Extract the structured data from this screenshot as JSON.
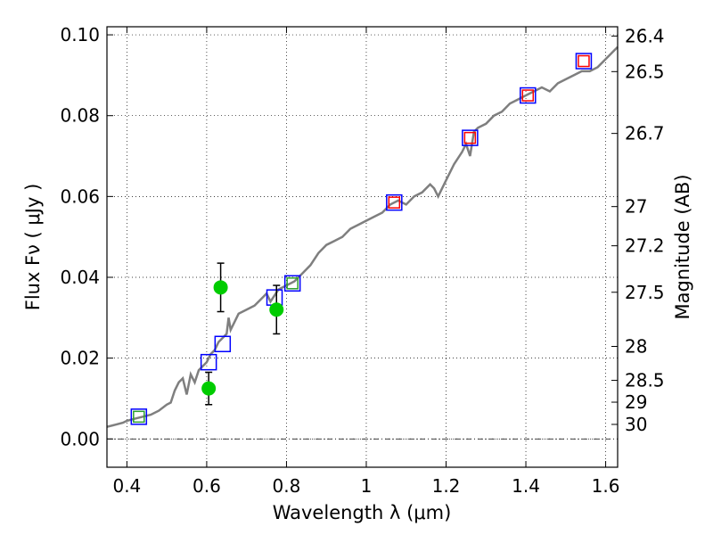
{
  "chart_data": {
    "type": "scatter",
    "xlabel": "Wavelength  λ (μm)",
    "ylabel": "Flux  Fν  ( μJy )",
    "ylabel_right": "Magnitude (AB)",
    "xlim": [
      0.35,
      1.63
    ],
    "ylim": [
      -0.007,
      0.102
    ],
    "x_ticks": [
      0.4,
      0.6,
      0.8,
      1.0,
      1.2,
      1.4,
      1.6
    ],
    "x_tick_labels": [
      "0.4",
      "0.6",
      "0.8",
      "1",
      "1.2",
      "1.4",
      "1.6"
    ],
    "y_ticks": [
      0.0,
      0.02,
      0.04,
      0.06,
      0.08,
      0.1
    ],
    "y_tick_labels": [
      "0.00",
      "0.02",
      "0.04",
      "0.06",
      "0.08",
      "0.10"
    ],
    "right_ticks": [
      {
        "flux": 0.0997,
        "label": "26.4"
      },
      {
        "flux": 0.0909,
        "label": "26.5"
      },
      {
        "flux": 0.0756,
        "label": "26.7"
      },
      {
        "flux": 0.0575,
        "label": "27"
      },
      {
        "flux": 0.0478,
        "label": "27.2"
      },
      {
        "flux": 0.0363,
        "label": "27.5"
      },
      {
        "flux": 0.0229,
        "label": "28"
      },
      {
        "flux": 0.0145,
        "label": "28.5"
      },
      {
        "flux": 0.0091,
        "label": "29"
      },
      {
        "flux": 0.0036,
        "label": "30"
      }
    ],
    "grid": true,
    "colors": {
      "model": "#7f7f7f",
      "model_photometry": "#0000ff",
      "observed_squares": "#ff0000",
      "observed_small": "#2ca02c",
      "circles": "#00cc00",
      "errorbar": "#000000",
      "zero_line": "#000000"
    },
    "series": [
      {
        "role": "model_spectrum",
        "x": [
          0.35,
          0.37,
          0.39,
          0.4,
          0.42,
          0.44,
          0.46,
          0.48,
          0.5,
          0.51,
          0.52,
          0.53,
          0.54,
          0.55,
          0.56,
          0.57,
          0.58,
          0.59,
          0.6,
          0.61,
          0.62,
          0.63,
          0.64,
          0.65,
          0.655,
          0.66,
          0.67,
          0.68,
          0.7,
          0.72,
          0.74,
          0.75,
          0.76,
          0.78,
          0.8,
          0.82,
          0.84,
          0.86,
          0.88,
          0.9,
          0.92,
          0.94,
          0.96,
          0.98,
          1.0,
          1.02,
          1.04,
          1.06,
          1.08,
          1.1,
          1.12,
          1.14,
          1.16,
          1.17,
          1.18,
          1.2,
          1.22,
          1.24,
          1.25,
          1.26,
          1.27,
          1.28,
          1.3,
          1.32,
          1.34,
          1.36,
          1.38,
          1.4,
          1.42,
          1.44,
          1.46,
          1.48,
          1.5,
          1.52,
          1.54,
          1.56,
          1.58,
          1.6,
          1.62,
          1.63
        ],
        "y": [
          0.003,
          0.0035,
          0.004,
          0.0045,
          0.005,
          0.0055,
          0.006,
          0.007,
          0.0085,
          0.009,
          0.012,
          0.014,
          0.015,
          0.011,
          0.016,
          0.014,
          0.017,
          0.018,
          0.019,
          0.021,
          0.022,
          0.024,
          0.025,
          0.026,
          0.03,
          0.027,
          0.029,
          0.031,
          0.032,
          0.033,
          0.035,
          0.036,
          0.034,
          0.037,
          0.038,
          0.039,
          0.041,
          0.043,
          0.046,
          0.048,
          0.049,
          0.05,
          0.052,
          0.053,
          0.054,
          0.055,
          0.056,
          0.058,
          0.059,
          0.058,
          0.06,
          0.061,
          0.063,
          0.062,
          0.06,
          0.064,
          0.068,
          0.071,
          0.073,
          0.07,
          0.076,
          0.077,
          0.078,
          0.08,
          0.081,
          0.083,
          0.084,
          0.085,
          0.086,
          0.087,
          0.086,
          0.088,
          0.089,
          0.09,
          0.091,
          0.091,
          0.092,
          0.094,
          0.096,
          0.097
        ]
      },
      {
        "role": "model_photometry",
        "x": [
          0.43,
          0.605,
          0.64,
          0.77,
          0.815,
          1.07,
          1.26,
          1.405,
          1.545
        ],
        "y": [
          0.0055,
          0.019,
          0.0235,
          0.035,
          0.0385,
          0.0585,
          0.0745,
          0.085,
          0.0935
        ]
      },
      {
        "role": "observed_squares",
        "x": [
          1.07,
          1.26,
          1.405,
          1.545
        ],
        "y": [
          0.0585,
          0.0745,
          0.085,
          0.0935
        ]
      },
      {
        "role": "observed_small_squares",
        "x": [
          0.43,
          0.815
        ],
        "y": [
          0.0055,
          0.0385
        ]
      },
      {
        "role": "observed_circles",
        "x": [
          0.605,
          0.635,
          0.775
        ],
        "y": [
          0.0125,
          0.0375,
          0.032
        ],
        "yerr": [
          0.004,
          0.006,
          0.006
        ]
      }
    ]
  }
}
